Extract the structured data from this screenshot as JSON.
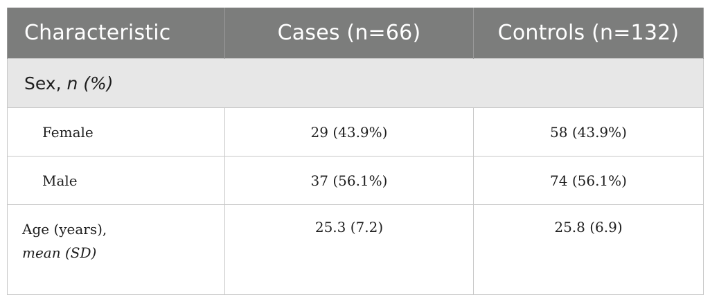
{
  "table": {
    "headers": [
      "Characteristic",
      "Cases (n=66)",
      "Controls (n=132)"
    ],
    "group": {
      "label": "Sex, ",
      "label_italic": "n (%)"
    },
    "rows": [
      {
        "label": "Female",
        "cases": "29 (43.9%)",
        "controls": "58 (43.9%)"
      },
      {
        "label": "Male",
        "cases": "37 (56.1%)",
        "controls": "74 (56.1%)"
      }
    ],
    "age_row": {
      "label_line1": "Age (years),",
      "label_line2_italic": "mean (SD)",
      "cases": "25.3 (7.2)",
      "controls": "25.8 (6.9)"
    }
  }
}
